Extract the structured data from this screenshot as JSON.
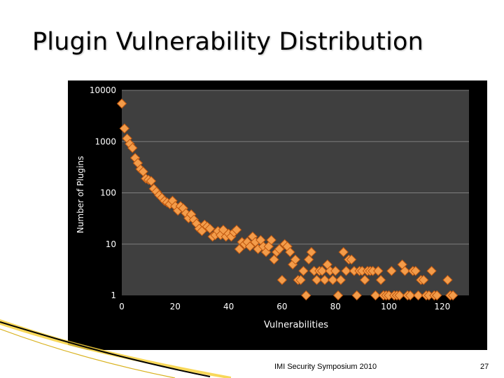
{
  "slide": {
    "title": "Plugin Vulnerability Distribution",
    "footer": "IMI Security Symposium 2010",
    "page_number": "27"
  },
  "colors": {
    "chart_background": "#000000",
    "plot_area": "#3f3f3f",
    "gridline": "#7f7f7f",
    "marker_fill": "#f39c4a",
    "marker_stroke": "#c0580f",
    "axis_text": "#ffffff",
    "decoration": "#f7d13d"
  },
  "chart_data": {
    "type": "scatter",
    "title": "",
    "xlabel": "Vulnerabilities",
    "ylabel": "Number of Plugins",
    "xlim": [
      0,
      130
    ],
    "ylim": [
      1,
      10000
    ],
    "y_scale": "log",
    "x_ticks": [
      0,
      20,
      40,
      60,
      80,
      100,
      120
    ],
    "y_ticks": [
      1,
      10,
      100,
      1000,
      10000
    ],
    "grid": "horizontal",
    "legend": "none",
    "points": [
      [
        0,
        5500
      ],
      [
        1,
        1800
      ],
      [
        2,
        1150
      ],
      [
        3,
        900
      ],
      [
        4,
        750
      ],
      [
        5,
        480
      ],
      [
        6,
        380
      ],
      [
        7,
        290
      ],
      [
        8,
        260
      ],
      [
        9,
        190
      ],
      [
        10,
        180
      ],
      [
        11,
        170
      ],
      [
        12,
        120
      ],
      [
        13,
        105
      ],
      [
        14,
        90
      ],
      [
        15,
        80
      ],
      [
        16,
        70
      ],
      [
        17,
        65
      ],
      [
        18,
        60
      ],
      [
        19,
        70
      ],
      [
        20,
        55
      ],
      [
        21,
        45
      ],
      [
        22,
        55
      ],
      [
        23,
        50
      ],
      [
        24,
        40
      ],
      [
        25,
        32
      ],
      [
        26,
        38
      ],
      [
        27,
        30
      ],
      [
        28,
        25
      ],
      [
        29,
        20
      ],
      [
        30,
        18
      ],
      [
        31,
        24
      ],
      [
        32,
        22
      ],
      [
        33,
        20
      ],
      [
        34,
        14
      ],
      [
        35,
        15
      ],
      [
        36,
        18
      ],
      [
        37,
        15
      ],
      [
        38,
        19
      ],
      [
        39,
        14
      ],
      [
        40,
        16
      ],
      [
        41,
        14
      ],
      [
        42,
        17
      ],
      [
        43,
        19
      ],
      [
        44,
        8
      ],
      [
        45,
        11
      ],
      [
        46,
        10
      ],
      [
        47,
        11
      ],
      [
        48,
        9
      ],
      [
        49,
        14
      ],
      [
        50,
        11
      ],
      [
        51,
        8
      ],
      [
        52,
        12
      ],
      [
        53,
        9
      ],
      [
        54,
        7
      ],
      [
        55,
        9
      ],
      [
        56,
        12
      ],
      [
        57,
        5
      ],
      [
        58,
        7
      ],
      [
        59,
        8
      ],
      [
        60,
        2
      ],
      [
        61,
        10
      ],
      [
        62,
        9
      ],
      [
        63,
        7
      ],
      [
        64,
        4
      ],
      [
        65,
        5
      ],
      [
        66,
        2
      ],
      [
        67,
        2
      ],
      [
        68,
        3
      ],
      [
        69,
        1
      ],
      [
        70,
        5
      ],
      [
        71,
        7
      ],
      [
        72,
        3
      ],
      [
        73,
        2
      ],
      [
        74,
        3
      ],
      [
        75,
        3
      ],
      [
        76,
        2
      ],
      [
        77,
        4
      ],
      [
        78,
        3
      ],
      [
        79,
        2
      ],
      [
        80,
        3
      ],
      [
        81,
        1
      ],
      [
        82,
        2
      ],
      [
        83,
        7
      ],
      [
        84,
        3
      ],
      [
        85,
        5
      ],
      [
        86,
        5
      ],
      [
        87,
        3
      ],
      [
        88,
        1
      ],
      [
        89,
        3
      ],
      [
        90,
        3
      ],
      [
        91,
        2
      ],
      [
        92,
        3
      ],
      [
        93,
        3
      ],
      [
        94,
        3
      ],
      [
        95,
        1
      ],
      [
        96,
        3
      ],
      [
        97,
        2
      ],
      [
        98,
        1
      ],
      [
        99,
        1
      ],
      [
        100,
        1
      ],
      [
        101,
        3
      ],
      [
        102,
        1
      ],
      [
        103,
        1
      ],
      [
        104,
        1
      ],
      [
        105,
        4
      ],
      [
        106,
        3
      ],
      [
        107,
        1
      ],
      [
        108,
        1
      ],
      [
        109,
        3
      ],
      [
        110,
        3
      ],
      [
        111,
        1
      ],
      [
        112,
        2
      ],
      [
        113,
        2
      ],
      [
        114,
        1
      ],
      [
        115,
        1
      ],
      [
        116,
        3
      ],
      [
        117,
        1
      ],
      [
        118,
        1
      ],
      [
        122,
        2
      ],
      [
        123,
        1
      ],
      [
        124,
        1
      ]
    ]
  }
}
